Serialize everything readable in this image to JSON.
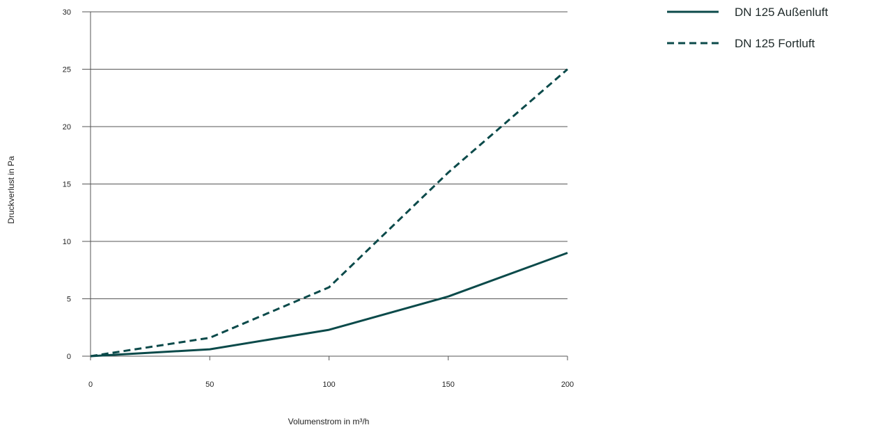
{
  "chart_data": {
    "type": "line",
    "xlabel": "Volumenstrom in m³/h",
    "ylabel": "Druckverlust in Pa",
    "xlim": [
      0,
      200
    ],
    "ylim": [
      0,
      30
    ],
    "x_ticks": [
      0,
      50,
      100,
      150,
      200
    ],
    "y_ticks": [
      0,
      5,
      10,
      15,
      20,
      25,
      30
    ],
    "grid": "horizontal",
    "legend_position": "top-right",
    "colors": {
      "line": "#0b4a4a",
      "grid": "#555555"
    },
    "series": [
      {
        "name": "DN 125 Außenluft",
        "style": "solid",
        "x": [
          0,
          50,
          100,
          150,
          200
        ],
        "y": [
          0,
          0.6,
          2.3,
          5.2,
          9.0
        ]
      },
      {
        "name": "DN 125 Fortluft",
        "style": "dashed",
        "x": [
          0,
          50,
          100,
          150,
          200
        ],
        "y": [
          0,
          1.6,
          6.0,
          16.0,
          25.0
        ]
      }
    ]
  }
}
